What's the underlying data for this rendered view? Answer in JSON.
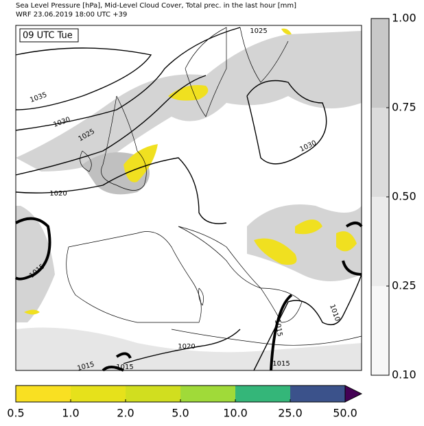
{
  "header": {
    "title_line1": "Sea Level Pressure [hPa], Mid-Level Cloud Cover, Total prec. in the last hour [mm]",
    "title_line2": "WRF 23.06.2019 18:00 UTC +39"
  },
  "map": {
    "time_label": "09 UTC Tue",
    "contour_labels": [
      "1025",
      "1035",
      "1030",
      "1025",
      "1020",
      "1030",
      "1015",
      "1015",
      "1020",
      "1015",
      "1015",
      "1010",
      "1015"
    ],
    "cloud_colorbar": {
      "ticks": [
        {
          "value": 0.1,
          "label": "0.10"
        },
        0.25,
        {
          "value": 0.5,
          "label": "0.50"
        },
        0.75,
        {
          "value": 1,
          "label": "1.00"
        }
      ],
      "colors": [
        "#f7f7f7",
        "#ebebeb",
        "#dcdcdc",
        "#c8c8c8"
      ]
    },
    "precip_colorbar": {
      "ticks": [
        0.5,
        {
          "value": 1,
          "label": "1.0"
        },
        {
          "value": 2,
          "label": "2.0"
        },
        {
          "value": 5,
          "label": "5.0"
        },
        {
          "value": 10,
          "label": "10.0"
        },
        {
          "value": 25,
          "label": "25.0"
        },
        {
          "value": 50,
          "label": "50.0"
        }
      ],
      "colors": [
        "#f9e022",
        "#e6e11b",
        "#d1de1f",
        "#a0da39",
        "#34b679",
        "#3b528b"
      ],
      "extend_color": "#440154"
    }
  }
}
